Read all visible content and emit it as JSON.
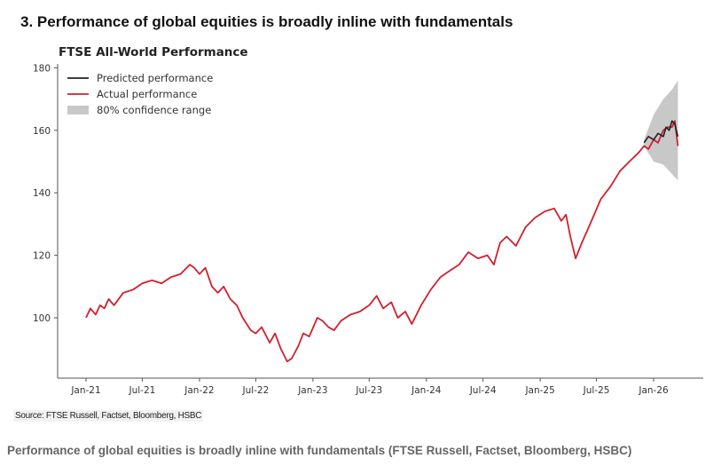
{
  "heading": "3. Performance of global equities is broadly inline with fundamentals",
  "source": "Source: FTSE Russell, Factset, Bloomberg, HSBC",
  "caption": "Performance of global equities is broadly inline with fundamentals (FTSE Russell, Factset, Bloomberg, HSBC)",
  "colors": {
    "actual": "#d0202e",
    "predicted": "#222222",
    "confidence": "#c8c8c8"
  },
  "chart_data": {
    "type": "line",
    "title": "FTSE All-World Performance",
    "xlabel": "",
    "ylabel": "",
    "ylim": [
      82,
      182
    ],
    "xlim": [
      "2020-12-01",
      "2026-04-15"
    ],
    "yticks": [
      100,
      120,
      140,
      160,
      180
    ],
    "xticks": [
      {
        "date": "2021-01-01",
        "label": "Jan-21"
      },
      {
        "date": "2021-07-01",
        "label": "Jul-21"
      },
      {
        "date": "2022-01-01",
        "label": "Jan-22"
      },
      {
        "date": "2022-07-01",
        "label": "Jul-22"
      },
      {
        "date": "2023-01-01",
        "label": "Jan-23"
      },
      {
        "date": "2023-07-01",
        "label": "Jul-23"
      },
      {
        "date": "2024-01-01",
        "label": "Jan-24"
      },
      {
        "date": "2024-07-01",
        "label": "Jul-24"
      },
      {
        "date": "2025-01-01",
        "label": "Jan-25"
      },
      {
        "date": "2025-07-01",
        "label": "Jul-25"
      },
      {
        "date": "2026-01-01",
        "label": "Jan-26"
      }
    ],
    "grid": false,
    "legend": "top-left",
    "series": [
      {
        "name": "Predicted performance",
        "x": [
          "2025-12-01",
          "2025-12-15",
          "2026-01-01",
          "2026-01-15",
          "2026-02-01",
          "2026-02-10",
          "2026-02-20",
          "2026-03-01",
          "2026-03-10",
          "2026-03-20"
        ],
        "y": [
          156,
          158,
          157,
          159,
          158,
          161,
          160,
          163,
          162,
          158
        ]
      },
      {
        "name": "Actual performance",
        "x": [
          "2021-01-01",
          "2021-01-15",
          "2021-02-01",
          "2021-02-15",
          "2021-03-01",
          "2021-03-15",
          "2021-04-01",
          "2021-05-01",
          "2021-06-01",
          "2021-07-01",
          "2021-08-01",
          "2021-09-01",
          "2021-10-01",
          "2021-11-01",
          "2021-12-01",
          "2021-12-15",
          "2022-01-01",
          "2022-01-20",
          "2022-02-10",
          "2022-03-01",
          "2022-03-20",
          "2022-04-10",
          "2022-05-01",
          "2022-05-20",
          "2022-06-15",
          "2022-07-01",
          "2022-07-20",
          "2022-08-15",
          "2022-09-01",
          "2022-09-20",
          "2022-10-10",
          "2022-10-25",
          "2022-11-15",
          "2022-12-01",
          "2022-12-20",
          "2023-01-15",
          "2023-02-01",
          "2023-02-20",
          "2023-03-10",
          "2023-04-01",
          "2023-05-01",
          "2023-06-01",
          "2023-07-01",
          "2023-07-25",
          "2023-08-15",
          "2023-09-10",
          "2023-10-01",
          "2023-10-25",
          "2023-11-15",
          "2023-12-15",
          "2024-01-15",
          "2024-02-15",
          "2024-03-15",
          "2024-04-15",
          "2024-05-15",
          "2024-06-15",
          "2024-07-15",
          "2024-08-05",
          "2024-08-25",
          "2024-09-15",
          "2024-10-15",
          "2024-11-15",
          "2024-12-15",
          "2025-01-15",
          "2025-02-15",
          "2025-03-10",
          "2025-03-25",
          "2025-04-08",
          "2025-04-25",
          "2025-05-15",
          "2025-06-15",
          "2025-07-15",
          "2025-08-15",
          "2025-09-15",
          "2025-10-15",
          "2025-11-15",
          "2025-12-01",
          "2025-12-15",
          "2026-01-01",
          "2026-01-15",
          "2026-02-01",
          "2026-02-15",
          "2026-03-01",
          "2026-03-10",
          "2026-03-20"
        ],
        "y": [
          100,
          103,
          101,
          104,
          103,
          106,
          104,
          108,
          109,
          111,
          112,
          111,
          113,
          114,
          117,
          116,
          114,
          116,
          110,
          108,
          110,
          106,
          104,
          100,
          96,
          95,
          97,
          92,
          95,
          90,
          86,
          87,
          91,
          95,
          94,
          100,
          99,
          97,
          96,
          99,
          101,
          102,
          104,
          107,
          103,
          105,
          100,
          102,
          98,
          104,
          109,
          113,
          115,
          117,
          121,
          119,
          120,
          117,
          124,
          126,
          123,
          129,
          132,
          134,
          135,
          131,
          133,
          126,
          119,
          124,
          131,
          138,
          142,
          147,
          150,
          153,
          155,
          154,
          157,
          156,
          160,
          161,
          161,
          163,
          155
        ]
      }
    ],
    "confidence_band": {
      "name": "80% confidence range",
      "x": [
        "2025-12-01",
        "2026-01-01",
        "2026-02-01",
        "2026-03-01",
        "2026-03-20"
      ],
      "lower": [
        155,
        150,
        149,
        146,
        144
      ],
      "upper": [
        157,
        165,
        170,
        173,
        176
      ]
    }
  }
}
